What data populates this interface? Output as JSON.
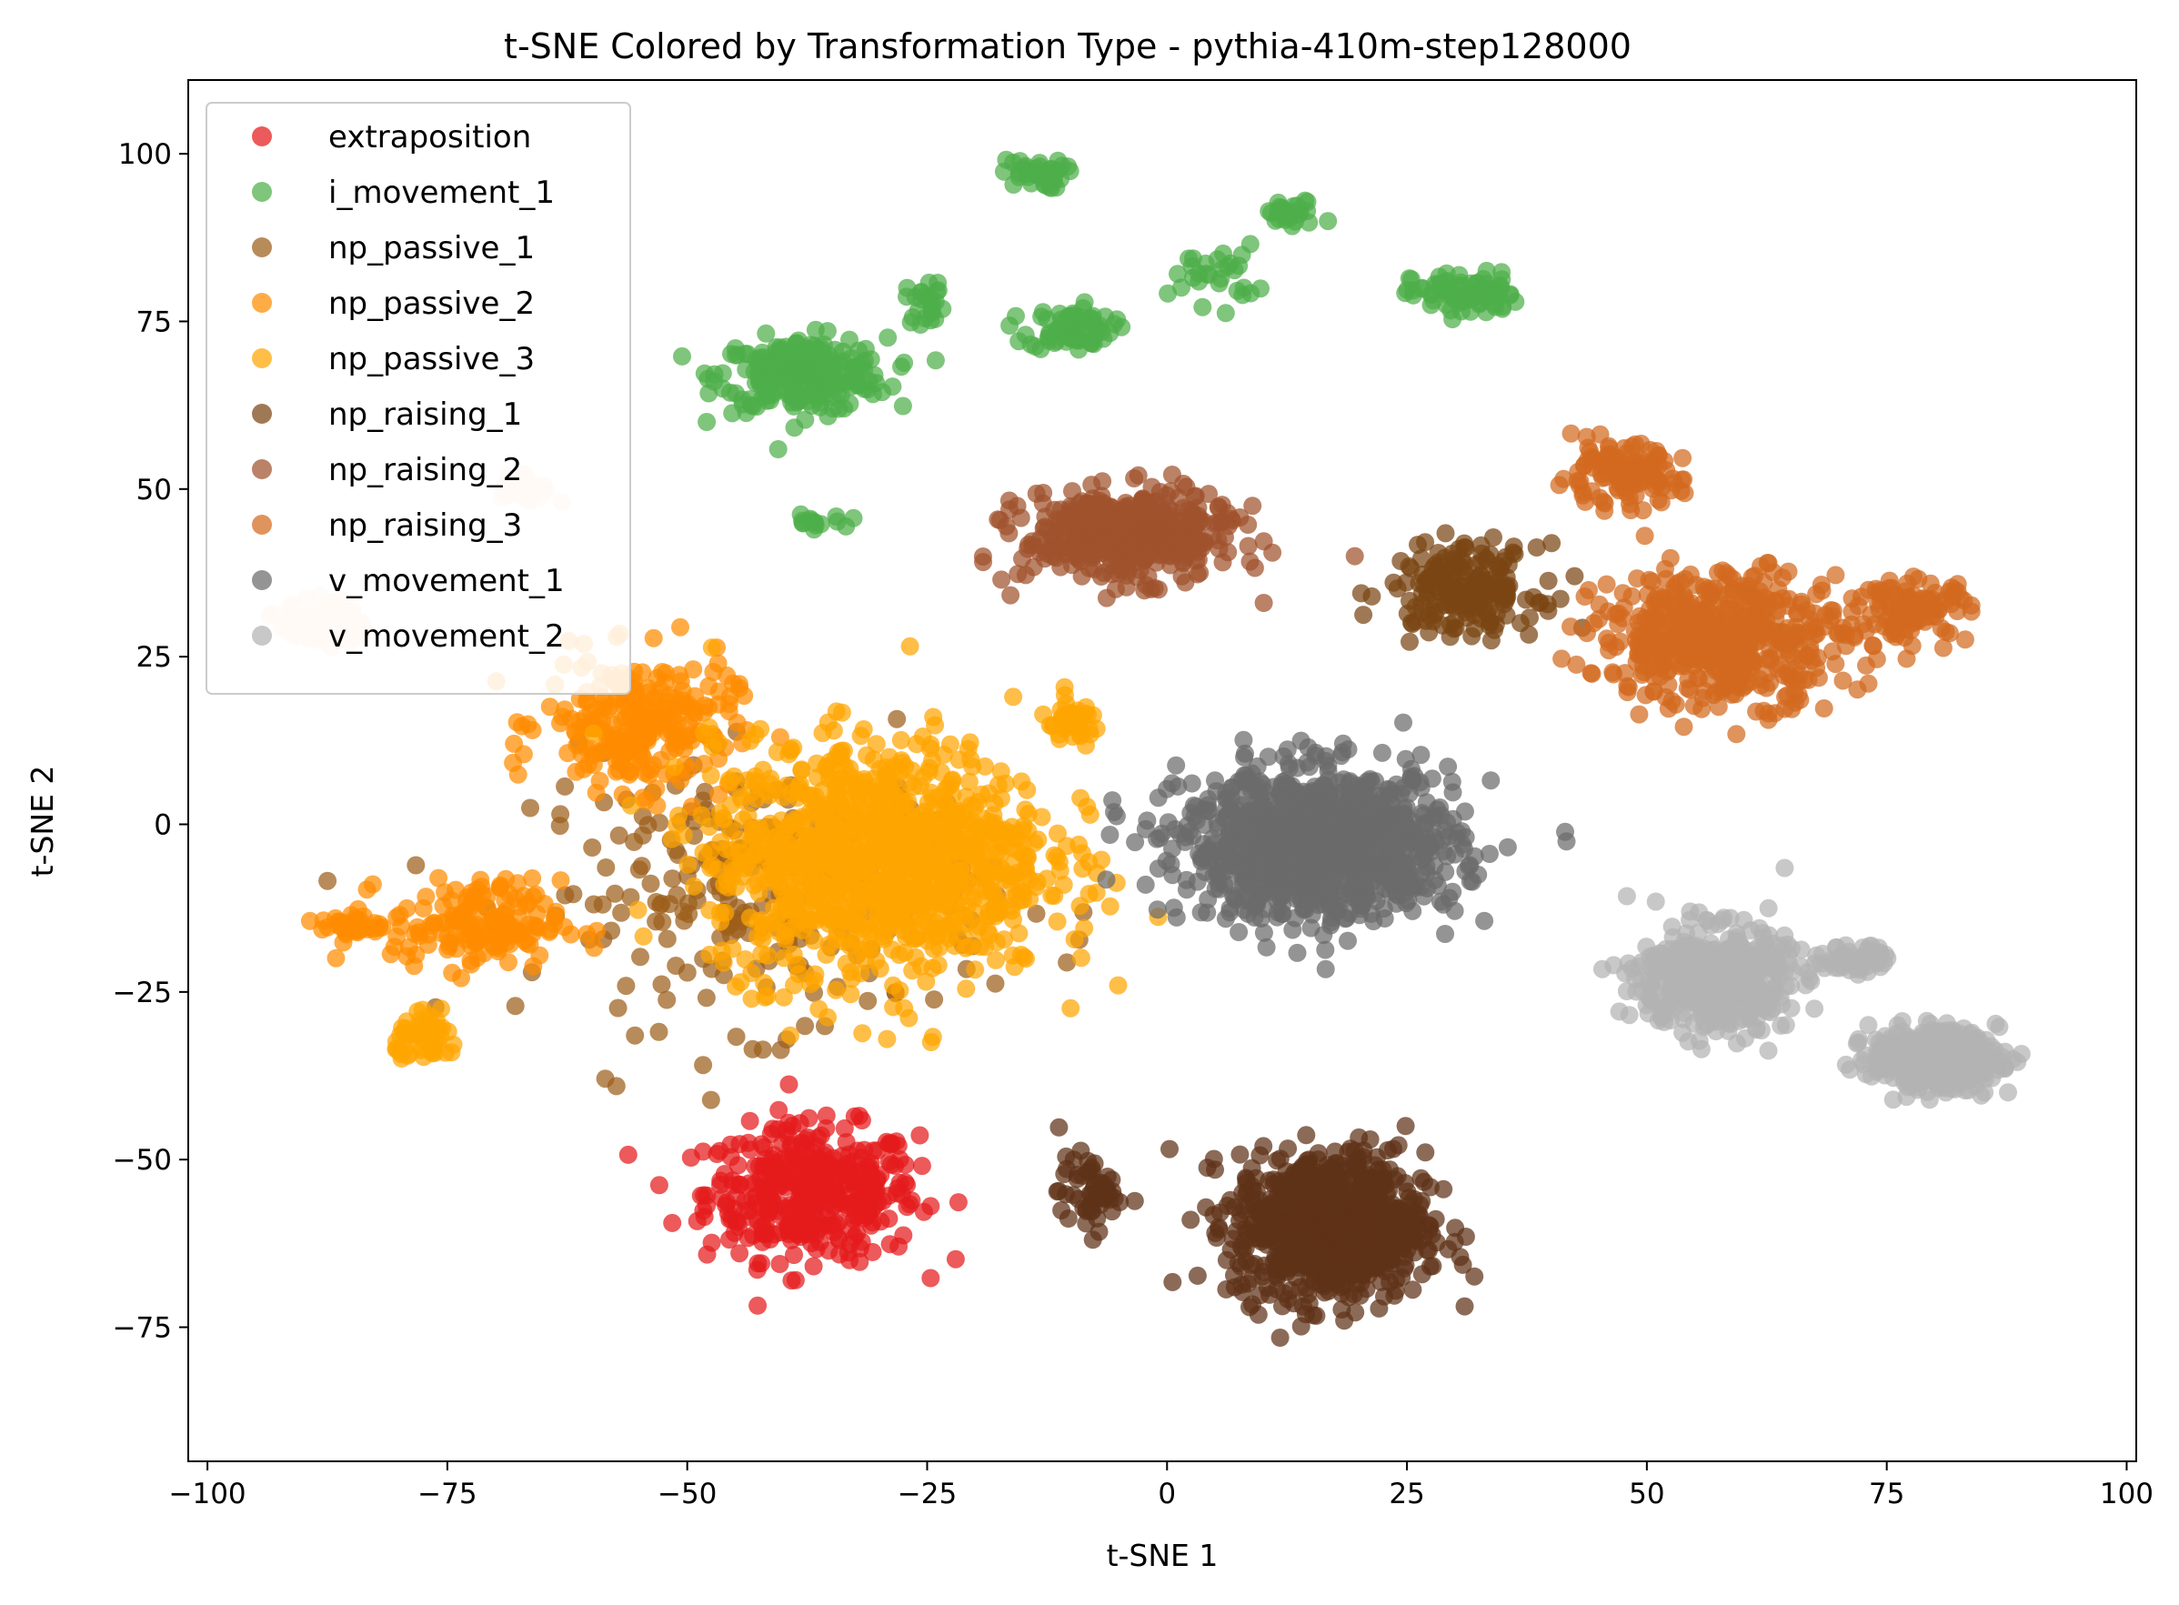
{
  "chart_data": {
    "type": "scatter",
    "title": "t-SNE Colored by Transformation Type - pythia-410m-step128000",
    "xlabel": "t-SNE 1",
    "ylabel": "t-SNE 2",
    "xlim": [
      -102,
      101
    ],
    "ylim": [
      -95,
      111
    ],
    "xticks": [
      -100,
      -75,
      -50,
      -25,
      0,
      25,
      50,
      75,
      100
    ],
    "xtick_labels": [
      "−100",
      "−75",
      "−50",
      "−25",
      "0",
      "25",
      "50",
      "75",
      "100"
    ],
    "yticks": [
      -75,
      -50,
      -25,
      0,
      25,
      50,
      75,
      100
    ],
    "ytick_labels": [
      "−75",
      "−50",
      "−25",
      "0",
      "25",
      "50",
      "75",
      "100"
    ],
    "grid": false,
    "legend_position": "top-left",
    "series": [
      {
        "name": "extraposition",
        "color": "#e41a1c",
        "clusters": [
          {
            "center": [
              -37,
              -55
            ],
            "spread": [
              10,
              9
            ],
            "count": 420
          }
        ]
      },
      {
        "name": "i_movement_1",
        "color": "#4daf4a",
        "clusters": [
          {
            "center": [
              -38,
              67
            ],
            "spread": [
              8,
              5
            ],
            "count": 260
          },
          {
            "center": [
              -10,
              74
            ],
            "spread": [
              4,
              3
            ],
            "count": 80
          },
          {
            "center": [
              -14,
              97
            ],
            "spread": [
              3,
              2
            ],
            "count": 40
          },
          {
            "center": [
              31,
              79
            ],
            "spread": [
              5,
              3
            ],
            "count": 80
          },
          {
            "center": [
              13,
              91
            ],
            "spread": [
              3,
              2
            ],
            "count": 30
          },
          {
            "center": [
              5,
              82
            ],
            "spread": [
              4,
              4
            ],
            "count": 30
          },
          {
            "center": [
              -25,
              78
            ],
            "spread": [
              2,
              3
            ],
            "count": 25
          },
          {
            "center": [
              -37,
              45
            ],
            "spread": [
              3,
              1
            ],
            "count": 15
          }
        ]
      },
      {
        "name": "np_passive_1",
        "color": "#9c5e1a",
        "clusters": [
          {
            "center": [
              -42,
              -10
            ],
            "spread": [
              22,
              18
            ],
            "count": 260
          }
        ]
      },
      {
        "name": "np_passive_2",
        "color": "#ff8c00",
        "clusters": [
          {
            "center": [
              -55,
              15
            ],
            "spread": [
              9,
              9
            ],
            "count": 260
          },
          {
            "center": [
              -72,
              -15
            ],
            "spread": [
              8,
              6
            ],
            "count": 160
          },
          {
            "center": [
              -85,
              -15
            ],
            "spread": [
              3,
              2
            ],
            "count": 30
          }
        ]
      },
      {
        "name": "np_passive_3",
        "color": "#ffa500",
        "clusters": [
          {
            "center": [
              -30,
              -5
            ],
            "spread": [
              16,
              16
            ],
            "count": 1100
          },
          {
            "center": [
              -77,
              -32
            ],
            "spread": [
              3,
              3
            ],
            "count": 60
          },
          {
            "center": [
              -10,
              15
            ],
            "spread": [
              3,
              3
            ],
            "count": 40
          }
        ]
      },
      {
        "name": "np_raising_1",
        "color": "#7a4514",
        "clusters": [
          {
            "center": [
              31,
              35
            ],
            "spread": [
              7,
              6
            ],
            "count": 200
          }
        ]
      },
      {
        "name": "np_raising_2",
        "color": "#a0522d",
        "clusters": [
          {
            "center": [
              -4,
              43
            ],
            "spread": [
              10,
              6
            ],
            "count": 460
          }
        ]
      },
      {
        "name": "np_raising_3",
        "color": "#d2691e",
        "clusters": [
          {
            "center": [
              58,
              28
            ],
            "spread": [
              12,
              9
            ],
            "count": 520
          },
          {
            "center": [
              47,
              52
            ],
            "spread": [
              6,
              4
            ],
            "count": 120
          },
          {
            "center": [
              78,
              32
            ],
            "spread": [
              5,
              4
            ],
            "count": 110
          }
        ]
      },
      {
        "name": "v_movement_1",
        "color": "#6b6b6b",
        "clusters": [
          {
            "center": [
              16,
              -3
            ],
            "spread": [
              13,
              10
            ],
            "count": 1100
          }
        ]
      },
      {
        "name": "v_movement_2",
        "color": "#b3b3b3",
        "clusters": [
          {
            "center": [
              57,
              -23
            ],
            "spread": [
              7,
              7
            ],
            "count": 520
          },
          {
            "center": [
              80,
              -35
            ],
            "spread": [
              6,
              4
            ],
            "count": 400
          },
          {
            "center": [
              72,
              -20
            ],
            "spread": [
              3,
              2
            ],
            "count": 60
          }
        ]
      },
      {
        "name": "",
        "color": "#2e2e2e",
        "clusters": [
          {
            "center": [
              17,
              -58
            ],
            "spread": [
              10,
              10
            ],
            "count": 0
          }
        ]
      },
      {
        "name": "",
        "color": "#ffdab9",
        "clusters": [
          {
            "center": [
              -88,
              30
            ],
            "spread": [
              4,
              3
            ],
            "count": 80
          },
          {
            "center": [
              -67,
              50
            ],
            "spread": [
              3,
              2
            ],
            "count": 30
          }
        ]
      },
      {
        "name": "",
        "color": "#5e3217",
        "clusters": [
          {
            "center": [
              17,
              -60
            ],
            "spread": [
              9,
              10
            ],
            "count": 850
          },
          {
            "center": [
              -8,
              -55
            ],
            "spread": [
              3,
              5
            ],
            "count": 60
          }
        ]
      }
    ]
  }
}
